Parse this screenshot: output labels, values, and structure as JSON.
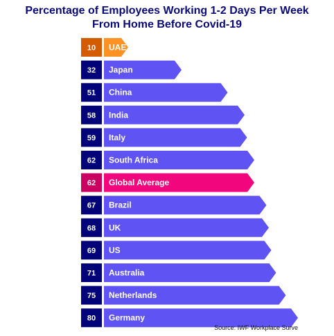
{
  "chart_data": {
    "type": "bar",
    "orientation": "horizontal",
    "title_lines": [
      "Percentage of Employees Working 1-2 Days Per Week",
      "From Home Before Covid-19"
    ],
    "source": "Source: IWF Workplace Surve",
    "categories": [
      "UAE",
      "Japan",
      "China",
      "India",
      "Italy",
      "South Africa",
      "Global Average",
      "Brazil",
      "UK",
      "US",
      "Australia",
      "Netherlands",
      "Germany"
    ],
    "values": [
      10,
      32,
      51,
      58,
      59,
      62,
      62,
      67,
      68,
      69,
      71,
      75,
      80
    ],
    "value_labels": [
      "10",
      "32",
      "51",
      "58",
      "59",
      "62",
      "62",
      "67",
      "68",
      "69",
      "71",
      "75",
      "80"
    ],
    "highlight": {
      "UAE": "min",
      "Global Average": "average"
    },
    "xlim": [
      0,
      80
    ],
    "grid": false,
    "legend": "none",
    "colors": {
      "default_bar": "#5f53f3",
      "default_box": "#020379",
      "uae_bar": "#fc9224",
      "uae_box": "#d35c02",
      "average_bar": "#f2067e",
      "average_box": "#c90060",
      "title": "#0a0a78"
    }
  }
}
